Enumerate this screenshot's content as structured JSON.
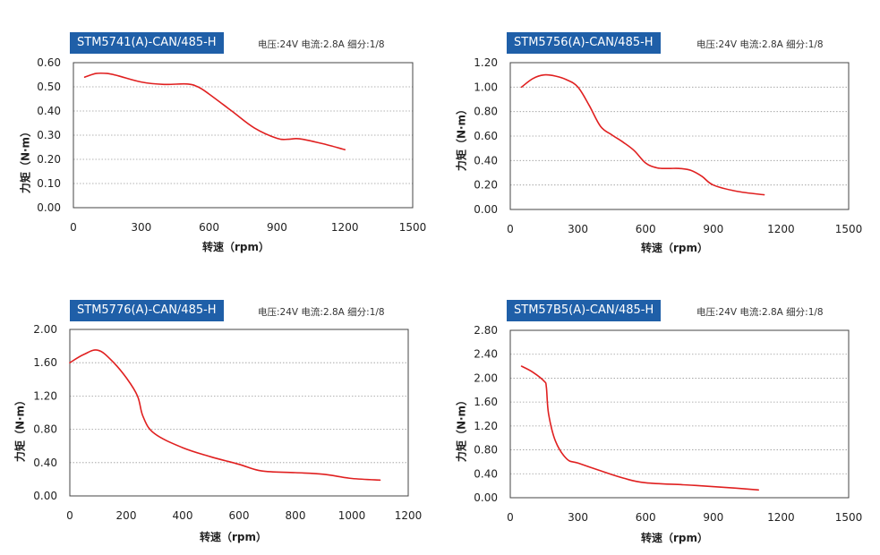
{
  "chart_data": [
    {
      "type": "line",
      "title": "STM5741(A)-CAN/485-H",
      "params": "电压:24V  电流:2.8A  细分:1/8",
      "xlabel": "转速（rpm）",
      "ylabel": "力矩（N·m）",
      "xlim": [
        0,
        1500
      ],
      "ylim": [
        0,
        0.6
      ],
      "xticks": [
        "0",
        "300",
        "600",
        "900",
        "1200",
        "1500"
      ],
      "yticks": [
        "0.00",
        "0.10",
        "0.20",
        "0.30",
        "0.40",
        "0.50",
        "0.60"
      ],
      "grid": "horizontal-dotted",
      "color": "#e02020",
      "series": [
        {
          "x": [
            50,
            100,
            150,
            200,
            300,
            400,
            500,
            550,
            600,
            700,
            800,
            900,
            950,
            1000,
            1100,
            1200
          ],
          "y": [
            0.54,
            0.555,
            0.555,
            0.545,
            0.52,
            0.51,
            0.512,
            0.5,
            0.47,
            0.4,
            0.33,
            0.287,
            0.283,
            0.285,
            0.265,
            0.24
          ]
        }
      ]
    },
    {
      "type": "line",
      "title": "STM5756(A)-CAN/485-H",
      "params": "电压:24V  电流:2.8A  细分:1/8",
      "xlabel": "转速（rpm）",
      "ylabel": "力矩（N·m）",
      "xlim": [
        0,
        1500
      ],
      "ylim": [
        0,
        1.2
      ],
      "xticks": [
        "0",
        "300",
        "600",
        "900",
        "1200",
        "1500"
      ],
      "yticks": [
        "0.00",
        "0.20",
        "0.40",
        "0.60",
        "0.80",
        "1.00",
        "1.20"
      ],
      "grid": "horizontal-dotted",
      "color": "#e02020",
      "series": [
        {
          "x": [
            50,
            100,
            150,
            200,
            250,
            300,
            350,
            400,
            450,
            500,
            550,
            600,
            650,
            700,
            750,
            800,
            850,
            900,
            1000,
            1125
          ],
          "y": [
            1.0,
            1.07,
            1.1,
            1.09,
            1.06,
            1.0,
            0.85,
            0.68,
            0.61,
            0.55,
            0.48,
            0.38,
            0.34,
            0.335,
            0.335,
            0.32,
            0.27,
            0.2,
            0.15,
            0.12
          ]
        }
      ]
    },
    {
      "type": "line",
      "title": "STM5776(A)-CAN/485-H",
      "params": "电压:24V  电流:2.8A  细分:1/8",
      "xlabel": "转速（rpm）",
      "ylabel": "力矩（N·m）",
      "xlim": [
        0,
        1200
      ],
      "ylim": [
        0,
        2.0
      ],
      "xticks": [
        "0",
        "200",
        "400",
        "600",
        "800",
        "1000",
        "1200"
      ],
      "yticks": [
        "0.00",
        "0.40",
        "0.80",
        "1.20",
        "1.60",
        "2.00"
      ],
      "grid": "horizontal-dotted",
      "color": "#e02020",
      "series": [
        {
          "x": [
            0,
            50,
            100,
            150,
            200,
            240,
            260,
            300,
            400,
            500,
            600,
            680,
            800,
            900,
            1000,
            1100
          ],
          "y": [
            1.6,
            1.7,
            1.75,
            1.62,
            1.42,
            1.2,
            0.95,
            0.75,
            0.58,
            0.47,
            0.38,
            0.3,
            0.28,
            0.26,
            0.21,
            0.19
          ]
        }
      ]
    },
    {
      "type": "line",
      "title": "STM57B5(A)-CAN/485-H",
      "params": "电压:24V  电流:2.8A  细分:1/8",
      "xlabel": "转速（rpm）",
      "ylabel": "力矩（N·m）",
      "xlim": [
        0,
        1500
      ],
      "ylim": [
        0,
        2.8
      ],
      "xticks": [
        "0",
        "300",
        "600",
        "900",
        "1200",
        "1500"
      ],
      "yticks": [
        "0.00",
        "0.40",
        "0.80",
        "1.20",
        "1.60",
        "2.00",
        "2.40",
        "2.80"
      ],
      "grid": "horizontal-dotted",
      "color": "#e02020",
      "series": [
        {
          "x": [
            50,
            100,
            150,
            160,
            170,
            200,
            250,
            300,
            400,
            500,
            600,
            800,
            1000,
            1100
          ],
          "y": [
            2.2,
            2.1,
            1.95,
            1.85,
            1.4,
            0.95,
            0.65,
            0.58,
            0.45,
            0.33,
            0.25,
            0.21,
            0.16,
            0.13
          ]
        }
      ]
    }
  ]
}
